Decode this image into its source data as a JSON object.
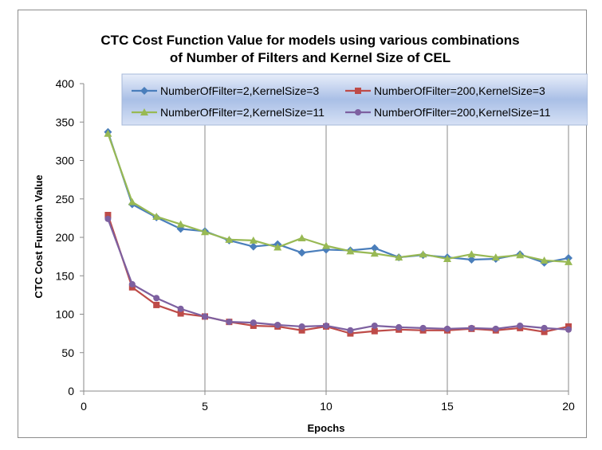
{
  "chart_data": {
    "type": "line",
    "title_lines": [
      "CTC Cost Function Value for models using various combinations",
      "of Number of Filters and Kernel Size of CEL"
    ],
    "xlabel": "Epochs",
    "ylabel": "CTC Cost Function Value",
    "xlim": [
      0,
      20
    ],
    "ylim": [
      0,
      400
    ],
    "xticks": [
      0,
      5,
      10,
      15,
      20
    ],
    "yticks": [
      0,
      50,
      100,
      150,
      200,
      250,
      300,
      350,
      400
    ],
    "grid": "vertical",
    "legend_placement": "top-right",
    "x": [
      1,
      2,
      3,
      4,
      5,
      6,
      7,
      8,
      9,
      10,
      11,
      12,
      13,
      14,
      15,
      16,
      17,
      18,
      19,
      20
    ],
    "series": [
      {
        "name": "NumberOfFilter=2,KernelSize=3",
        "color": "#4a7ebb",
        "marker": "diamond",
        "values": [
          337,
          243,
          226,
          211,
          208,
          196,
          188,
          191,
          180,
          184,
          183,
          186,
          174,
          177,
          174,
          171,
          172,
          178,
          167,
          173
        ]
      },
      {
        "name": "NumberOfFilter=200,KernelSize=3",
        "color": "#be4b48",
        "marker": "square",
        "values": [
          229,
          135,
          112,
          101,
          97,
          90,
          85,
          84,
          79,
          84,
          75,
          78,
          80,
          79,
          79,
          81,
          79,
          82,
          77,
          84
        ]
      },
      {
        "name": "NumberOfFilter=2,KernelSize=11",
        "color": "#98b954",
        "marker": "triangle",
        "values": [
          335,
          246,
          227,
          217,
          207,
          197,
          196,
          187,
          199,
          189,
          182,
          179,
          174,
          178,
          172,
          178,
          174,
          177,
          170,
          168
        ]
      },
      {
        "name": "NumberOfFilter=200,KernelSize=11",
        "color": "#7d60a0",
        "marker": "circle",
        "values": [
          224,
          139,
          121,
          107,
          97,
          90,
          89,
          86,
          84,
          85,
          79,
          85,
          83,
          82,
          81,
          82,
          81,
          85,
          82,
          80
        ]
      }
    ]
  }
}
